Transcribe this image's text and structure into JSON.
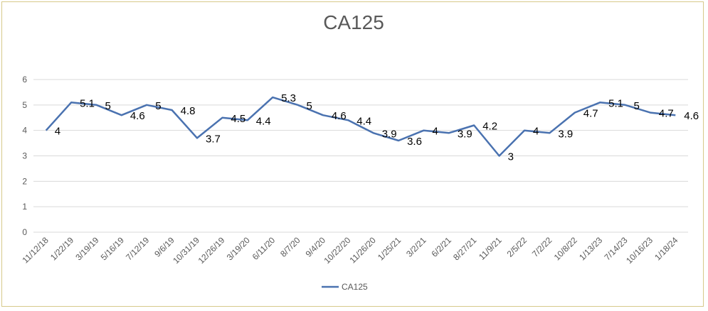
{
  "chart_data": {
    "type": "line",
    "title": "CA125",
    "xlabel": "",
    "ylabel": "",
    "ylim": [
      0,
      6
    ],
    "yticks": [
      "0",
      "1",
      "2",
      "3",
      "4",
      "5",
      "6"
    ],
    "grid": true,
    "legend_position": "bottom",
    "categories": [
      "11/12/18",
      "1/22/19",
      "3/19/19",
      "5/16/19",
      "7/12/19",
      "9/6/19",
      "10/31/19",
      "12/26/19",
      "3/19/20",
      "6/11/20",
      "8/7/20",
      "9/4/20",
      "10/22/20",
      "11/26/20",
      "1/25/21",
      "3/2/21",
      "6/2/21",
      "8/27/21",
      "11/9/21",
      "2/5/22",
      "7/2/22",
      "10/8/22",
      "1/13/23",
      "7/14/23",
      "10/16/23",
      "1/18/24"
    ],
    "series": [
      {
        "name": "CA125",
        "color": "#4a72b0",
        "values": [
          4,
          5.1,
          5,
          4.6,
          5,
          4.8,
          3.7,
          4.5,
          4.4,
          5.3,
          5,
          4.6,
          4.4,
          3.9,
          3.6,
          4,
          3.9,
          4.2,
          3,
          4,
          3.9,
          4.7,
          5.1,
          5,
          4.7,
          4.6
        ],
        "labels": [
          "4",
          "5.1",
          "5",
          "4.6",
          "5",
          "4.8",
          "3.7",
          "4.5",
          "4.4",
          "5.3",
          "5",
          "4.6",
          "4.4",
          "3.9",
          "3.6",
          "4",
          "3.9",
          "4.2",
          "3",
          "4",
          "3.9",
          "4.7",
          "5.1",
          "5",
          "4.7",
          "4.6"
        ]
      }
    ]
  }
}
